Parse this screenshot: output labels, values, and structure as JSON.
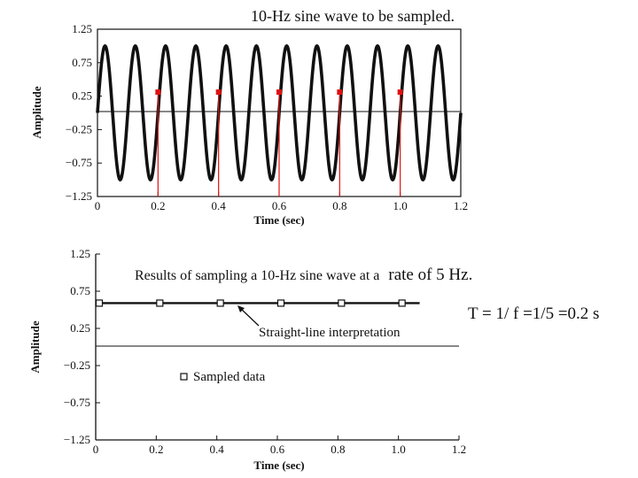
{
  "chart_data": [
    {
      "type": "line",
      "title": "10-Hz sine wave to be sampled.",
      "xlabel": "Time (sec)",
      "ylabel": "Amplitude",
      "xlim": [
        0,
        1.2
      ],
      "ylim": [
        -1.25,
        1.25
      ],
      "x_ticks": [
        "0",
        "0.2",
        "0.4",
        "0.6",
        "0.8",
        "1.0",
        "1.2"
      ],
      "y_ticks": [
        "1.25",
        "0.75",
        "0.25",
        "−0.25",
        "−0.75",
        "−1.25"
      ],
      "grid": false,
      "series": [
        {
          "frequency_hz": 10,
          "amplitude": 1.0,
          "x_range": [
            0,
            1.2
          ],
          "color": "#111111"
        },
        {
          "type": "stem",
          "x": [
            0.2,
            0.4,
            0.6,
            0.8,
            1.0
          ],
          "y": [
            0.31,
            0.31,
            0.31,
            0.31,
            0.31
          ],
          "color": "#e01010"
        }
      ],
      "reference_line_y": 0
    },
    {
      "type": "line",
      "subtitle_prefix": "Results of sampling a 10-Hz sine wave at a",
      "subtitle_suffix": "rate of 5 Hz.",
      "xlabel": "Time (sec)",
      "ylabel": "Amplitude",
      "xlim": [
        0,
        1.2
      ],
      "ylim": [
        -1.25,
        1.25
      ],
      "x_ticks": [
        "0",
        "0.2",
        "0.4",
        "0.6",
        "0.8",
        "1.0",
        "1.2"
      ],
      "y_ticks": [
        "1.25",
        "0.75",
        "0.25",
        "−0.25",
        "−0.75",
        "−1.25"
      ],
      "grid": false,
      "series": [
        {
          "name": "Sampled data",
          "x": [
            0,
            0.2,
            0.4,
            0.6,
            0.8,
            1.0
          ],
          "y": [
            0.59,
            0.59,
            0.59,
            0.59,
            0.59,
            0.59
          ],
          "marker": "square",
          "line_to_x": 1.07
        }
      ],
      "annotation": "Straight-line interpretation",
      "legend_label": "Sampled data",
      "reference_line_y": 0,
      "side_note": "T = 1/ f =1/5 =0.2 s"
    }
  ]
}
